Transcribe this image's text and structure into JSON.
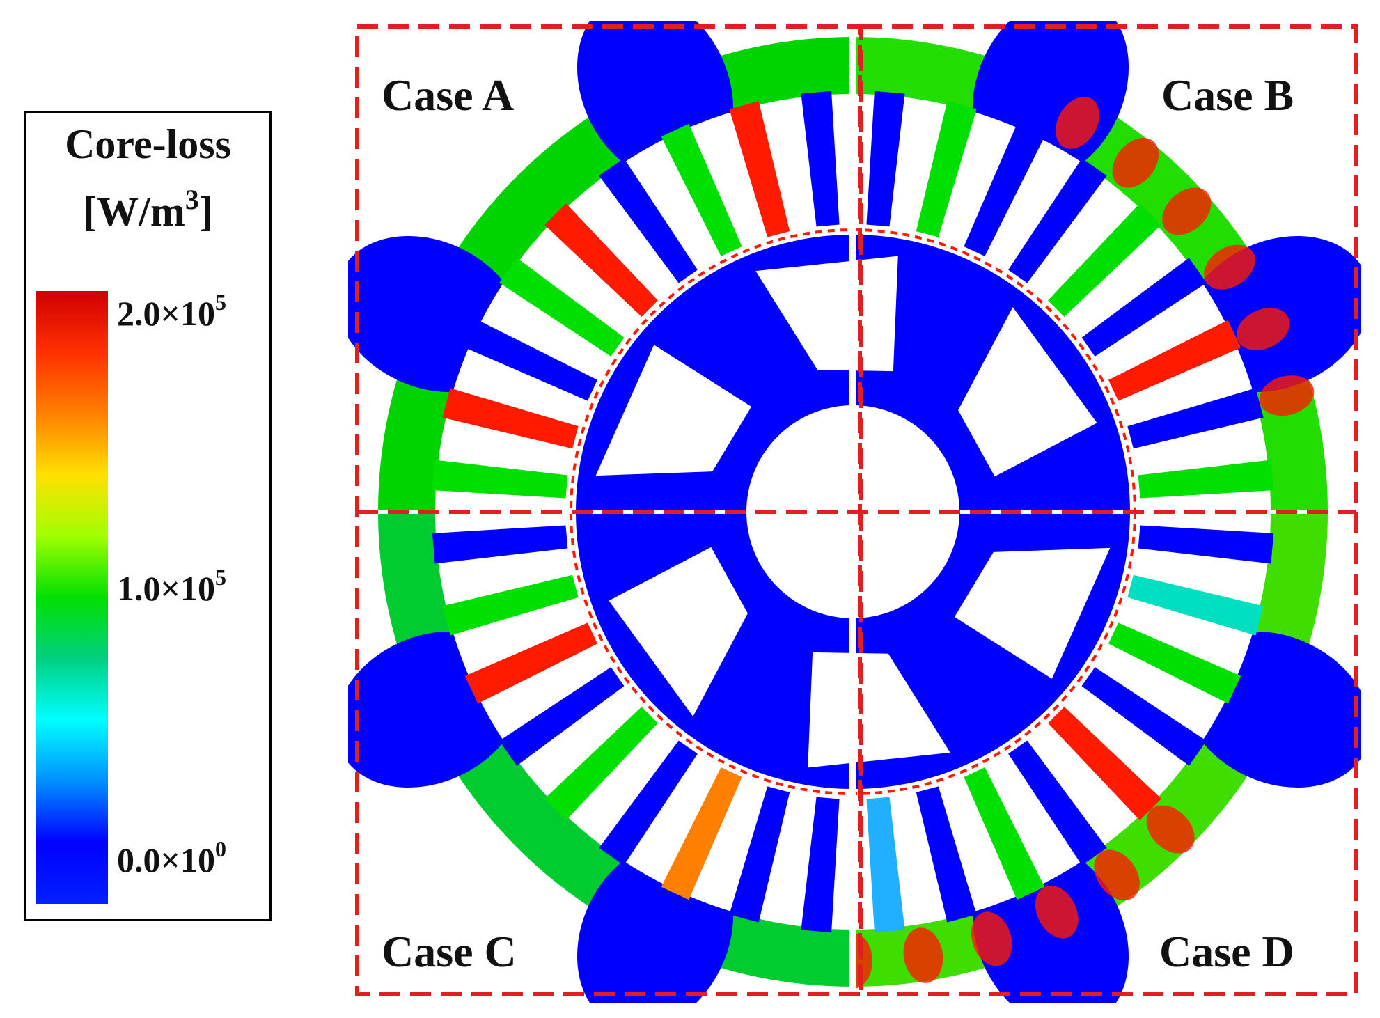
{
  "legend": {
    "title": "Core-loss",
    "unit_base": "[W/m",
    "unit_exp": "3",
    "unit_end": "]",
    "ticks": [
      {
        "mantissa": "2.0×10",
        "exp": "5"
      },
      {
        "mantissa": "1.0×10",
        "exp": "5"
      },
      {
        "mantissa": "0.0×10",
        "exp": "0"
      }
    ],
    "colormap": [
      "#d00000",
      "#ff3000",
      "#ff8000",
      "#ffe000",
      "#a0ff00",
      "#00e000",
      "#00d080",
      "#00ffff",
      "#0090ff",
      "#0000ff",
      "#0020ff"
    ]
  },
  "cases": {
    "a": "Case A",
    "b": "Case B",
    "c": "Case C",
    "d": "Case D"
  },
  "colors": {
    "dashed_frame": "#e02020",
    "low_loss": "#0000ff",
    "mid_loss": "#00e000",
    "high_loss": "#ff1a00"
  }
}
